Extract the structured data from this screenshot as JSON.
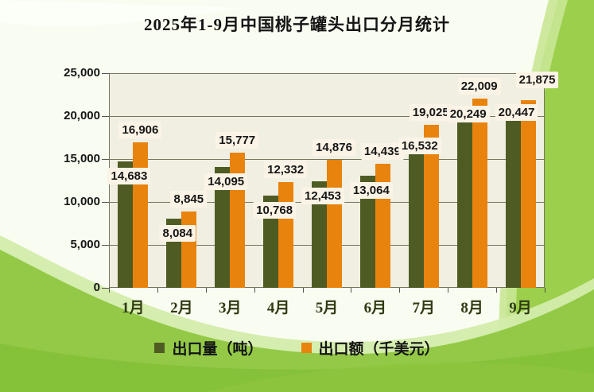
{
  "title": "2025年1-9月中国桃子罐头出口分月统计",
  "chart_data": {
    "type": "bar",
    "categories": [
      "1月",
      "2月",
      "3月",
      "4月",
      "5月",
      "6月",
      "7月",
      "8月",
      "9月"
    ],
    "series": [
      {
        "name": "出口量（吨）",
        "color": "#4e5c24",
        "values": [
          14683,
          8084,
          14095,
          10768,
          12453,
          13064,
          16532,
          20249,
          20447
        ],
        "value_labels": [
          "14,683",
          "8,084",
          "14,095",
          "10,768",
          "12,453",
          "13,064",
          "16,532",
          "20,249",
          "20,447"
        ]
      },
      {
        "name": "出口额（千美元）",
        "color": "#e8830e",
        "values": [
          16906,
          8845,
          15777,
          12332,
          14876,
          14439,
          19025,
          22009,
          21875
        ],
        "value_labels": [
          "16,906",
          "8,845",
          "15,777",
          "12,332",
          "14,876",
          "14,439",
          "19,025",
          "22,009",
          "21,875"
        ]
      }
    ],
    "xlabel": "",
    "ylabel": "",
    "ylim": [
      0,
      25000
    ],
    "yticks": [
      0,
      5000,
      10000,
      15000,
      20000,
      25000
    ],
    "ytick_labels": [
      "0",
      "5,000",
      "10,000",
      "15,000",
      "20,000",
      "25,000"
    ],
    "grid": true,
    "legend_position": "bottom"
  },
  "colors": {
    "plot_bg": "#f1efe2",
    "label_box_bg": "#fbf4e6",
    "bar_volume": "#4e5c24",
    "bar_value": "#e8830e",
    "month_label": "#2f3b12",
    "background_green": "#93c947"
  }
}
